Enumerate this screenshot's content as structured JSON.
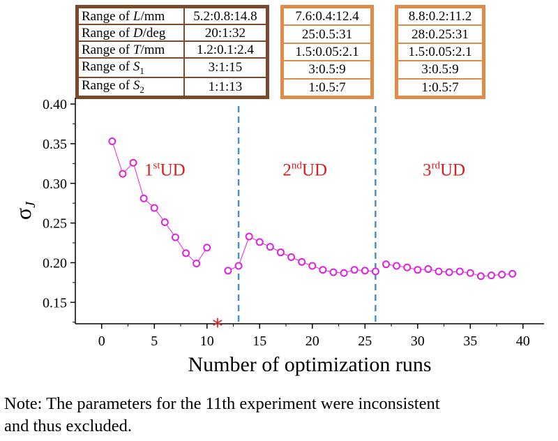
{
  "tables": [
    {
      "label_rows": [
        "Range of L/mm",
        "Range of D/deg",
        "Range of T/mm",
        "Range of S1",
        "Range of S2"
      ],
      "values": [
        "5.2:0.8:14.8",
        "20:1:32",
        "1.2:0.1:2.4",
        "3:1:15",
        "1:1:13"
      ]
    },
    {
      "values": [
        "7.6:0.4:12.4",
        "25:0.5:31",
        "1.5:0.05:2.1",
        "3:0.5:9",
        "1:0.5:7"
      ]
    },
    {
      "values": [
        "8.8:0.2:11.2",
        "28:0.25:31",
        "1.5:0.05:2.1",
        "3:0.5:9",
        "1:0.5:7"
      ]
    }
  ],
  "chart_data": {
    "type": "line",
    "title": "",
    "xlabel": "Number of optimization runs",
    "ylabel": "σJ",
    "xlim": [
      -2.5,
      42
    ],
    "ylim": [
      0.123,
      0.408
    ],
    "xticks": [
      0,
      5,
      10,
      15,
      20,
      25,
      30,
      35,
      40
    ],
    "yticks": [
      0.15,
      0.2,
      0.25,
      0.3,
      0.35,
      0.4
    ],
    "ytick_labels": [
      "0.15",
      "0.20",
      "0.25",
      "0.30",
      "0.35",
      "0.40"
    ],
    "series": [
      {
        "name": "σJ",
        "color": "#e020e0",
        "segments": [
          [
            [
              1,
              0.353
            ],
            [
              2,
              0.312
            ],
            [
              3,
              0.326
            ],
            [
              4,
              0.281
            ],
            [
              5,
              0.269
            ],
            [
              6,
              0.251
            ],
            [
              7,
              0.232
            ],
            [
              8,
              0.212
            ],
            [
              9,
              0.199
            ],
            [
              10,
              0.219
            ]
          ],
          [
            [
              12,
              0.19
            ],
            [
              13,
              0.196
            ],
            [
              14,
              0.233
            ],
            [
              15,
              0.226
            ],
            [
              16,
              0.22
            ],
            [
              17,
              0.213
            ],
            [
              18,
              0.207
            ],
            [
              19,
              0.201
            ],
            [
              20,
              0.196
            ],
            [
              21,
              0.191
            ],
            [
              22,
              0.188
            ],
            [
              23,
              0.187
            ],
            [
              24,
              0.191
            ],
            [
              25,
              0.19
            ],
            [
              26,
              0.189
            ]
          ],
          [
            [
              27,
              0.198
            ],
            [
              28,
              0.196
            ],
            [
              29,
              0.194
            ],
            [
              30,
              0.191
            ],
            [
              31,
              0.192
            ],
            [
              32,
              0.189
            ],
            [
              33,
              0.188
            ],
            [
              34,
              0.189
            ],
            [
              35,
              0.187
            ],
            [
              36,
              0.183
            ],
            [
              37,
              0.184
            ],
            [
              38,
              0.185
            ],
            [
              39,
              0.186
            ]
          ]
        ]
      }
    ],
    "dividers": [
      13,
      26
    ],
    "divider_color": "#4a90c8",
    "regions": [
      {
        "ordinal": "1",
        "suffix": "st",
        "label": "UD",
        "x": 6,
        "y": 0.31
      },
      {
        "ordinal": "2",
        "suffix": "nd",
        "label": "UD",
        "x": 19.3,
        "y": 0.31
      },
      {
        "ordinal": "3",
        "suffix": "rd",
        "label": "UD",
        "x": 32.5,
        "y": 0.31
      }
    ],
    "region_color": "#d42020",
    "excluded_marker": {
      "x": 11,
      "symbol": "*",
      "color": "#e02020"
    }
  },
  "note": {
    "line1": "Note: The parameters for the 11th experiment were inconsistent",
    "line2": "and thus excluded."
  }
}
